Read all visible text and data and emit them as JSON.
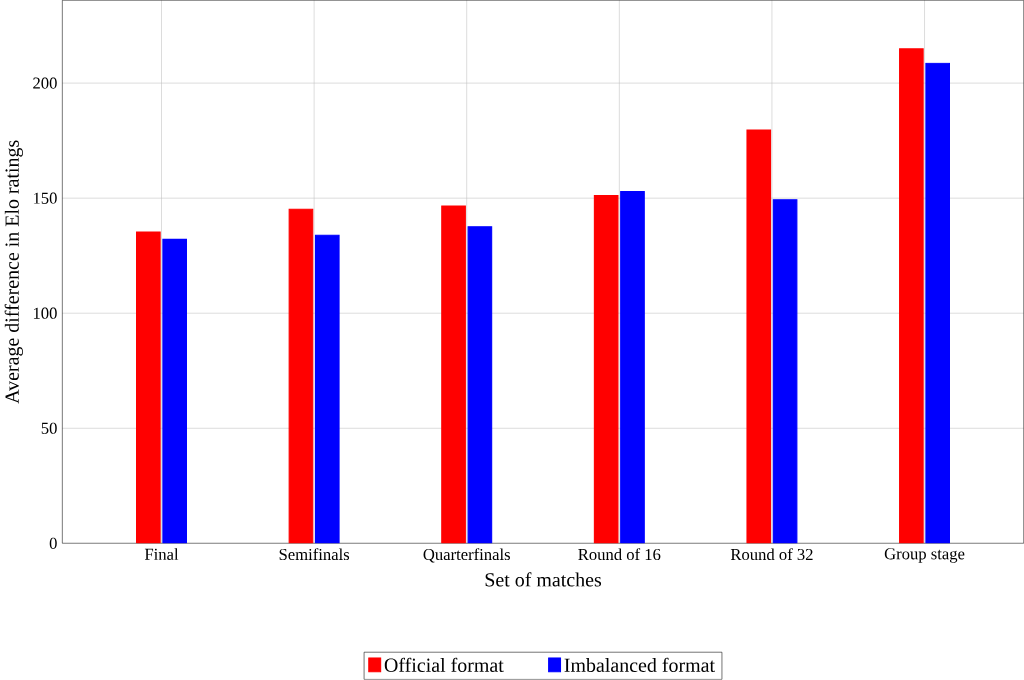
{
  "chart_data": {
    "type": "bar",
    "xlabel": "Set of matches",
    "ylabel": "Average difference in Elo ratings",
    "categories": [
      "Final",
      "Semifinals",
      "Quarterfinals",
      "Round of 16",
      "Round of 32",
      "Group stage"
    ],
    "series": [
      {
        "name": "Official format",
        "color": "#ff0000",
        "values": [
          135.3,
          145.2,
          146.6,
          151.1,
          179.6,
          214.9
        ]
      },
      {
        "name": "Imbalanced format",
        "color": "#0000ff",
        "values": [
          132.1,
          133.9,
          137.6,
          152.9,
          149.3,
          208.6
        ]
      }
    ],
    "ylim": [
      0,
      236
    ],
    "yticks": [
      0,
      50,
      100,
      150,
      200
    ],
    "grid": true,
    "legend": "bottom"
  }
}
